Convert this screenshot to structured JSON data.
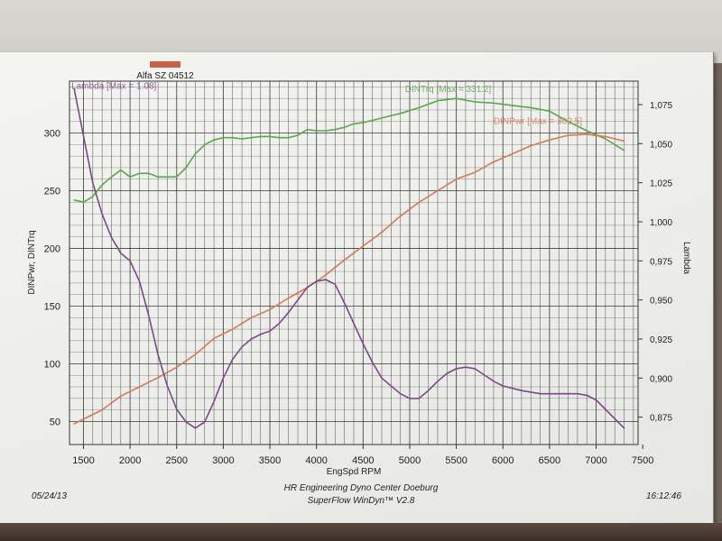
{
  "date": "05/24/13",
  "time": "16:12:46",
  "footer": {
    "line1": "HR Engineering Dyno Center Doeburg",
    "line2": "SuperFlow WinDyn™ V2.8"
  },
  "colors": {
    "torque": "#5aa84a",
    "power": "#d47a55",
    "lambda": "#7a4a86",
    "grid": "#3a3a3a",
    "legend_swatch": "#c8604a"
  },
  "chart_data": {
    "type": "line",
    "title": "Alfa SZ 04512",
    "xlabel": "EngSpd  RPM",
    "ylabel_left": "DINPwr, DINTrq",
    "ylabel_right": "Lambda",
    "xlim": [
      1350,
      7450
    ],
    "ylim_left": [
      30,
      345
    ],
    "ylim_right": [
      0.8575,
      1.09
    ],
    "x_ticks": [
      1500,
      2000,
      2500,
      3000,
      3500,
      4000,
      4500,
      5000,
      5500,
      6000,
      6500,
      7000,
      7500
    ],
    "y_left_ticks": [
      50,
      100,
      150,
      200,
      250,
      300
    ],
    "y_right_ticks": [
      "0,875",
      "0,900",
      "0,925",
      "0,950",
      "0,975",
      "1,000",
      "1,025",
      "1,050",
      "1,075"
    ],
    "y_right_tick_values": [
      0.875,
      0.9,
      0.925,
      0.95,
      0.975,
      1.0,
      1.025,
      1.05,
      1.075
    ],
    "grid": true,
    "series": [
      {
        "name": "DINTrq",
        "annotation": "DINTrq [Max = 331.2]",
        "axis": "left",
        "points": [
          [
            1400,
            242
          ],
          [
            1500,
            240
          ],
          [
            1600,
            245
          ],
          [
            1700,
            255
          ],
          [
            1800,
            262
          ],
          [
            1900,
            268
          ],
          [
            2000,
            262
          ],
          [
            2100,
            265
          ],
          [
            2200,
            265
          ],
          [
            2300,
            262
          ],
          [
            2400,
            262
          ],
          [
            2500,
            262
          ],
          [
            2600,
            270
          ],
          [
            2700,
            282
          ],
          [
            2800,
            290
          ],
          [
            2900,
            294
          ],
          [
            3000,
            296
          ],
          [
            3100,
            296
          ],
          [
            3200,
            295
          ],
          [
            3300,
            296
          ],
          [
            3400,
            297
          ],
          [
            3500,
            297
          ],
          [
            3600,
            296
          ],
          [
            3700,
            296
          ],
          [
            3800,
            298
          ],
          [
            3900,
            303
          ],
          [
            4000,
            302
          ],
          [
            4100,
            302
          ],
          [
            4200,
            303
          ],
          [
            4300,
            305
          ],
          [
            4400,
            308
          ],
          [
            4500,
            309
          ],
          [
            4700,
            313
          ],
          [
            4900,
            317
          ],
          [
            5100,
            322
          ],
          [
            5300,
            328
          ],
          [
            5500,
            330
          ],
          [
            5700,
            327
          ],
          [
            5900,
            326
          ],
          [
            6100,
            324
          ],
          [
            6300,
            322
          ],
          [
            6500,
            319
          ],
          [
            6700,
            310
          ],
          [
            6900,
            302
          ],
          [
            7100,
            295
          ],
          [
            7300,
            285
          ]
        ]
      },
      {
        "name": "DINPwr",
        "annotation": "DINPwr [Max = 302.5]",
        "axis": "left",
        "points": [
          [
            1400,
            48
          ],
          [
            1500,
            52
          ],
          [
            1700,
            60
          ],
          [
            1900,
            72
          ],
          [
            2100,
            80
          ],
          [
            2300,
            88
          ],
          [
            2500,
            97
          ],
          [
            2700,
            108
          ],
          [
            2900,
            122
          ],
          [
            3100,
            130
          ],
          [
            3300,
            140
          ],
          [
            3500,
            147
          ],
          [
            3700,
            157
          ],
          [
            3900,
            166
          ],
          [
            4100,
            177
          ],
          [
            4300,
            190
          ],
          [
            4500,
            202
          ],
          [
            4700,
            214
          ],
          [
            4900,
            228
          ],
          [
            5100,
            240
          ],
          [
            5300,
            250
          ],
          [
            5500,
            260
          ],
          [
            5700,
            266
          ],
          [
            5900,
            275
          ],
          [
            6100,
            282
          ],
          [
            6300,
            289
          ],
          [
            6500,
            294
          ],
          [
            6700,
            298
          ],
          [
            6900,
            299
          ],
          [
            7100,
            297
          ],
          [
            7300,
            293
          ]
        ]
      },
      {
        "name": "Lambda",
        "annotation": "Lambda [Max = 1.08]",
        "axis": "right",
        "points": [
          [
            1400,
            1.085
          ],
          [
            1500,
            1.055
          ],
          [
            1600,
            1.025
          ],
          [
            1700,
            1.005
          ],
          [
            1800,
            0.99
          ],
          [
            1900,
            0.98
          ],
          [
            2000,
            0.975
          ],
          [
            2100,
            0.962
          ],
          [
            2200,
            0.94
          ],
          [
            2300,
            0.915
          ],
          [
            2400,
            0.895
          ],
          [
            2500,
            0.88
          ],
          [
            2600,
            0.872
          ],
          [
            2700,
            0.868
          ],
          [
            2800,
            0.872
          ],
          [
            2900,
            0.885
          ],
          [
            3000,
            0.9
          ],
          [
            3100,
            0.912
          ],
          [
            3200,
            0.92
          ],
          [
            3300,
            0.925
          ],
          [
            3400,
            0.928
          ],
          [
            3500,
            0.93
          ],
          [
            3600,
            0.935
          ],
          [
            3700,
            0.942
          ],
          [
            3800,
            0.95
          ],
          [
            3900,
            0.958
          ],
          [
            4000,
            0.962
          ],
          [
            4100,
            0.963
          ],
          [
            4200,
            0.96
          ],
          [
            4300,
            0.948
          ],
          [
            4400,
            0.935
          ],
          [
            4500,
            0.922
          ],
          [
            4600,
            0.91
          ],
          [
            4700,
            0.9
          ],
          [
            4800,
            0.895
          ],
          [
            4900,
            0.89
          ],
          [
            5000,
            0.887
          ],
          [
            5100,
            0.887
          ],
          [
            5200,
            0.892
          ],
          [
            5300,
            0.898
          ],
          [
            5400,
            0.903
          ],
          [
            5500,
            0.906
          ],
          [
            5600,
            0.907
          ],
          [
            5700,
            0.906
          ],
          [
            5800,
            0.902
          ],
          [
            5900,
            0.898
          ],
          [
            6000,
            0.895
          ],
          [
            6200,
            0.892
          ],
          [
            6400,
            0.89
          ],
          [
            6600,
            0.89
          ],
          [
            6800,
            0.89
          ],
          [
            6900,
            0.889
          ],
          [
            7000,
            0.886
          ],
          [
            7100,
            0.88
          ],
          [
            7200,
            0.874
          ],
          [
            7300,
            0.868
          ]
        ]
      }
    ]
  }
}
